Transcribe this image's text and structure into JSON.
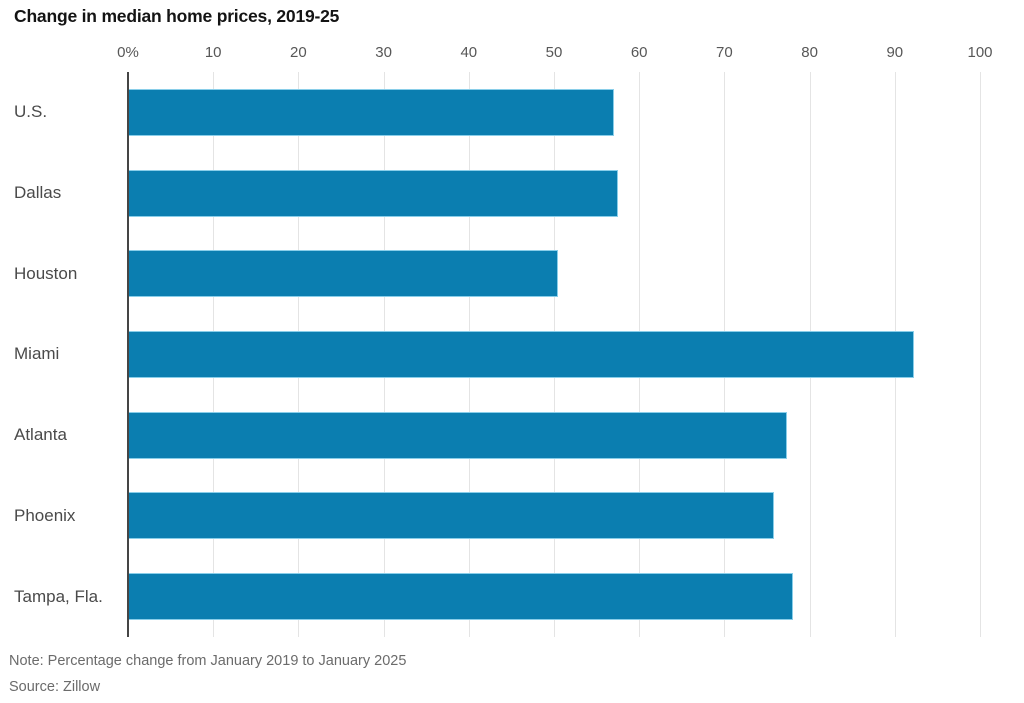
{
  "title": "Change in median home prices, 2019-25",
  "note": "Note: Percentage change from January 2019 to January 2025",
  "source": "Source: Zillow",
  "colors": {
    "bar": "#0b7eb0",
    "axis_line": "#454545",
    "gridline": "#e4e4e4",
    "title_text": "#141414",
    "label_text": "#4a4a4a",
    "tick_text": "#575757",
    "note_text": "#6b6b6b"
  },
  "chart_data": {
    "type": "bar",
    "orientation": "horizontal",
    "title": "Change in median home prices, 2019-25",
    "categories": [
      "U.S.",
      "Dallas",
      "Houston",
      "Miami",
      "Atlanta",
      "Phoenix",
      "Tampa, Fla."
    ],
    "values": [
      57,
      57.5,
      50.5,
      92.3,
      77.3,
      75.8,
      78
    ],
    "unit": "percent",
    "x_axis": {
      "position": "top",
      "range": [
        0,
        100
      ],
      "tick_values": [
        0,
        10,
        20,
        30,
        40,
        50,
        60,
        70,
        80,
        90,
        100
      ],
      "tick_labels": [
        "0%",
        "10",
        "20",
        "30",
        "40",
        "50",
        "60",
        "70",
        "80",
        "90",
        "100"
      ]
    },
    "grid": true,
    "legend": false,
    "note": "Note: Percentage change from January 2019 to January 2025",
    "source": "Source: Zillow"
  }
}
